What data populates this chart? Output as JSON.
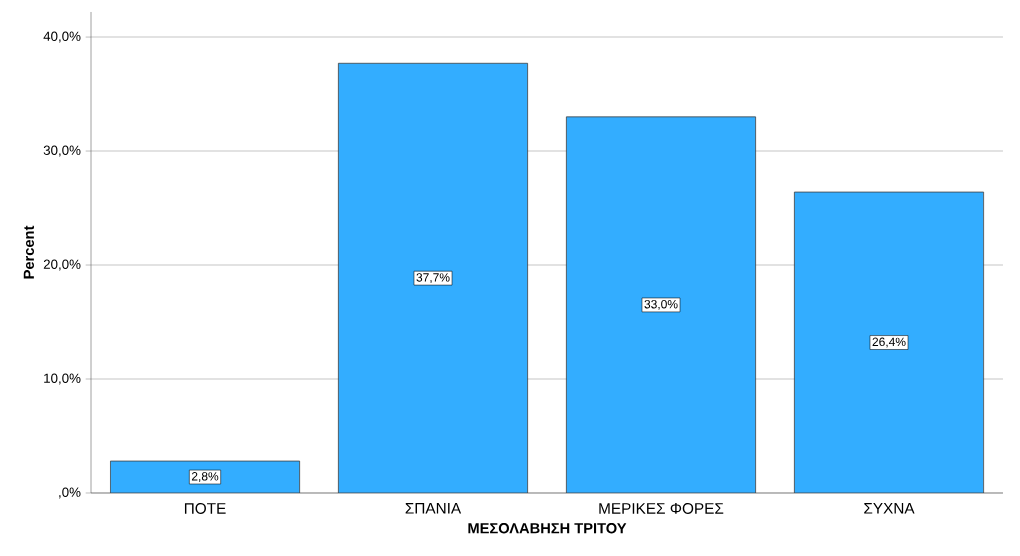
{
  "chart_data": {
    "type": "bar",
    "xlabel": "ΜΕΣΟΛΑΒΗΣΗ ΤΡΙΤΟΥ",
    "ylabel": "Percent",
    "categories": [
      "ΠΟΤΕ",
      "ΣΠΑΝΙΑ",
      "ΜΕΡΙΚΕΣ ΦΟΡΕΣ",
      "ΣΥΧΝΑ"
    ],
    "values": [
      2.8,
      37.7,
      33.0,
      26.4
    ],
    "value_labels": [
      "2,8%",
      "37,7%",
      "33,0%",
      "26,4%"
    ],
    "color": "#33adff",
    "ylim": [
      0,
      42.2
    ],
    "yticks": [
      {
        "value": 0,
        "label": ",0%"
      },
      {
        "value": 10,
        "label": "10,0%"
      },
      {
        "value": 20,
        "label": "20,0%"
      },
      {
        "value": 30,
        "label": "30,0%"
      },
      {
        "value": 40,
        "label": "40,0%"
      }
    ],
    "grid": "y"
  }
}
